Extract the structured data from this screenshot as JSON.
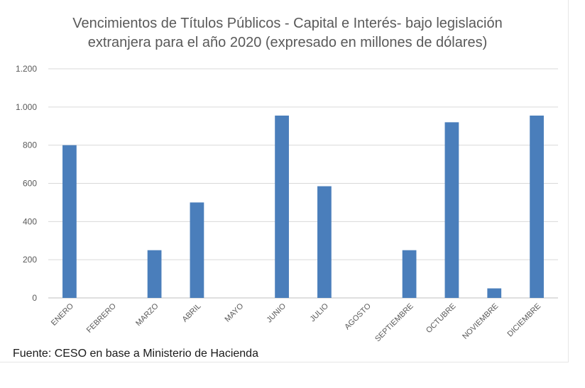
{
  "chart_data": {
    "type": "bar",
    "title_line1": "Vencimientos de Títulos Públicos - Capital e Interés- bajo legislación",
    "title_line2": "extranjera para el año 2020 (expresado en millones de dólares)",
    "categories": [
      "ENERO",
      "FEBRERO",
      "MARZO",
      "ABRIL",
      "MAYO",
      "JUNIO",
      "JULIO",
      "AGOSTO",
      "SEPTIEMBRE",
      "OCTUBRE",
      "NOVIEMBRE",
      "DICIEMBRE"
    ],
    "values": [
      800,
      0,
      250,
      500,
      0,
      955,
      585,
      0,
      250,
      920,
      50,
      955
    ],
    "ylim": [
      0,
      1200
    ],
    "yticks": [
      0,
      200,
      400,
      600,
      800,
      1000,
      1200
    ],
    "ytick_labels": [
      "0",
      "200",
      "400",
      "600",
      "800",
      "1.000",
      "1.200"
    ],
    "bar_color": "#4a7ebb",
    "grid_color": "#d9d9d9",
    "xlabel": "",
    "ylabel": "",
    "grid": true
  },
  "source_text": "Fuente: CESO en base a Ministerio de Hacienda"
}
